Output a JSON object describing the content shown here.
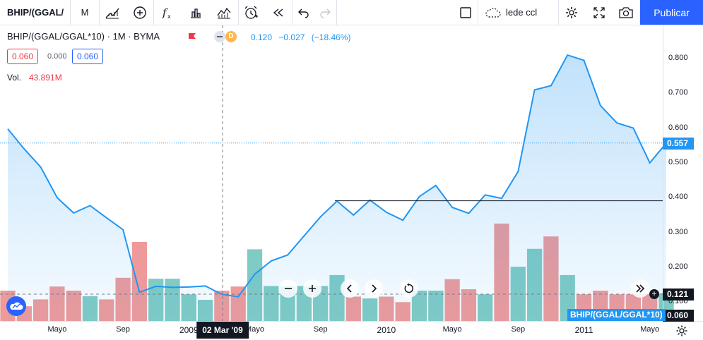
{
  "toolbar": {
    "symbol": "BHIP/(GGAL/",
    "interval": "M",
    "template": "lede ccl",
    "publish_label": "Publicar"
  },
  "legend": {
    "title": "BHIP/(GGAL/GGAL*10) · 1M · BYMA",
    "dividend_badge": "D",
    "price": "0.120",
    "change": "−0.027",
    "change_pct": "(−18.46%)",
    "box_sell": "0.060",
    "box_spread": "0.000",
    "box_buy": "0.060",
    "vol_label": "Vol.",
    "vol_value": "43.891M"
  },
  "axis": {
    "y_ticks": [
      "0.800",
      "0.700",
      "0.600",
      "0.500",
      "0.400",
      "0.300",
      "0.200",
      "0.100"
    ],
    "x_ticks": [
      "Mayo",
      "Sep",
      "2009",
      "Mayo",
      "Sep",
      "2010",
      "Mayo",
      "Sep",
      "2011",
      "Mayo"
    ],
    "last_price_tag": "0.557",
    "crosshair_price": "0.121",
    "crosshair_date": "02 Mar '09",
    "volume_tag": "0.060",
    "series_label": "BHIP/(GGAL/GGAL*10)"
  },
  "colors": {
    "line": "#2196f3",
    "volume_up": "#80cbc4",
    "volume_down": "#ef9a9a",
    "accent": "#2962ff",
    "down": "#f23645"
  },
  "chart_data": {
    "type": "area",
    "x": [
      "2008-01",
      "2008-02",
      "2008-03",
      "2008-04",
      "2008-05",
      "2008-06",
      "2008-07",
      "2008-08",
      "2008-09",
      "2008-10",
      "2008-11",
      "2008-12",
      "2009-01",
      "2009-02",
      "2009-03",
      "2009-04",
      "2009-05",
      "2009-06",
      "2009-07",
      "2009-08",
      "2009-09",
      "2009-10",
      "2009-11",
      "2009-12",
      "2010-01",
      "2010-02",
      "2010-03",
      "2010-04",
      "2010-05",
      "2010-06",
      "2010-07",
      "2010-08",
      "2010-09",
      "2010-10",
      "2010-11",
      "2010-12",
      "2011-01",
      "2011-02",
      "2011-03",
      "2011-04",
      "2011-05",
      "2011-06"
    ],
    "series": [
      {
        "values": [
          0.598,
          0.54,
          0.488,
          0.4,
          0.356,
          0.377,
          0.342,
          0.308,
          0.128,
          0.145,
          0.142,
          0.143,
          0.146,
          0.122,
          0.115,
          0.18,
          0.218,
          0.235,
          0.29,
          0.345,
          0.39,
          0.35,
          0.393,
          0.358,
          0.335,
          0.403,
          0.435,
          0.372,
          0.355,
          0.408,
          0.398,
          0.475,
          0.71,
          0.722,
          0.81,
          0.795,
          0.665,
          0.615,
          0.6,
          0.5,
          0.557,
          null
        ]
      }
    ],
    "volume": {
      "values": [
        0.066,
        0.032,
        0.047,
        0.075,
        0.066,
        0.054,
        0.047,
        0.094,
        0.172,
        0.092,
        0.092,
        0.058,
        0.046,
        0.066,
        0.075,
        0.156,
        0.076,
        0.076,
        0.076,
        0.076,
        0.1,
        0.053,
        0.049,
        0.053,
        0.041,
        0.066,
        0.066,
        0.091,
        0.069,
        0.058,
        0.212,
        0.118,
        0.157,
        0.184,
        0.1,
        0.058,
        0.066,
        0.058,
        0.058,
        0.058,
        0.06
      ],
      "direction": [
        "down",
        "down",
        "down",
        "down",
        "down",
        "up",
        "down",
        "down",
        "down",
        "up",
        "up",
        "up",
        "up",
        "down",
        "down",
        "up",
        "up",
        "up",
        "up",
        "up",
        "up",
        "down",
        "up",
        "down",
        "down",
        "up",
        "up",
        "down",
        "down",
        "up",
        "down",
        "up",
        "up",
        "down",
        "up",
        "down",
        "down",
        "down",
        "down",
        "down",
        "up"
      ]
    },
    "horizontal_line": 0.391,
    "ylim": [
      0.08,
      0.86
    ],
    "log_scale": false,
    "grid": false
  }
}
